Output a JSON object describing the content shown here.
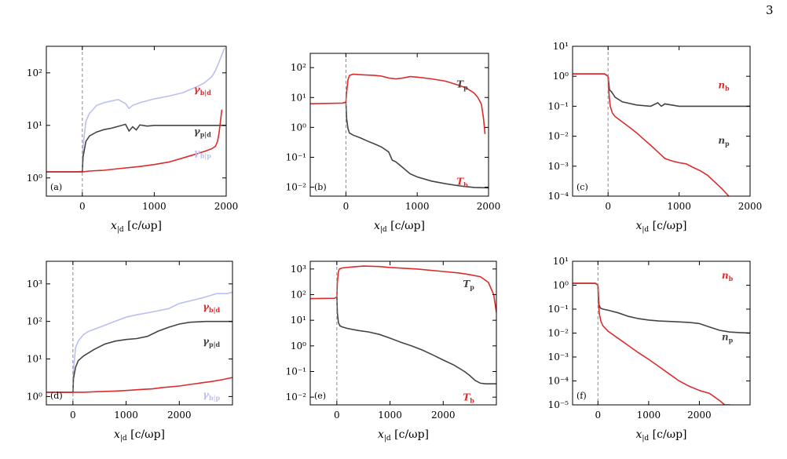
{
  "page_number": "3",
  "chart_data": [
    {
      "id": "a",
      "panel_label": "(a)",
      "type": "line",
      "yscale": "log",
      "xlim": [
        -500,
        2000
      ],
      "ylim": [
        0.45,
        320
      ],
      "xticks": [
        0,
        1000,
        2000
      ],
      "xtick_labels": [
        "0",
        "1000",
        "2000"
      ],
      "yticks": [
        1,
        10,
        100
      ],
      "ytick_labels": [
        "10⁰",
        "10¹",
        "10²"
      ],
      "xlabel": "x|d [c/ωp]",
      "xlabel_main": "x",
      "xlabel_sub": "|d",
      "xlabel_units": " [c/ωp]",
      "vline_x": 0,
      "series": [
        {
          "name": "γb|p",
          "label_main": "γ",
          "label_sub": "b|p",
          "color": "#bcbff0",
          "x": [
            -500,
            -100,
            0,
            10,
            50,
            100,
            200,
            300,
            400,
            500,
            600,
            650,
            700,
            800,
            1000,
            1200,
            1400,
            1600,
            1700,
            1800,
            1850,
            1900,
            1950,
            1980
          ],
          "y": [
            1.3,
            1.3,
            1.35,
            4,
            12,
            17,
            24,
            27,
            29,
            31,
            26,
            21,
            24,
            27,
            32,
            36,
            42,
            55,
            65,
            85,
            110,
            160,
            240,
            300
          ]
        },
        {
          "name": "γp|d",
          "label_main": "γ",
          "label_sub": "p|d",
          "color": "#444444",
          "x": [
            -500,
            0,
            10,
            50,
            100,
            200,
            300,
            400,
            500,
            600,
            650,
            700,
            750,
            800,
            900,
            1000,
            1200,
            1500,
            2000
          ],
          "y": [
            1.3,
            1.3,
            2.5,
            5,
            6.3,
            7.5,
            8.3,
            8.8,
            9.6,
            10.5,
            7.8,
            9.4,
            8.2,
            10.2,
            9.7,
            10,
            10,
            10,
            10
          ]
        },
        {
          "name": "γb|d",
          "label_main": "γ",
          "label_sub": "b|d",
          "color": "#dd2b2b",
          "x": [
            -500,
            0,
            100,
            300,
            500,
            800,
            1000,
            1200,
            1400,
            1600,
            1700,
            1800,
            1850,
            1880,
            1900,
            1920,
            1940
          ],
          "y": [
            1.3,
            1.3,
            1.35,
            1.4,
            1.5,
            1.65,
            1.8,
            2.0,
            2.4,
            2.9,
            3.2,
            3.6,
            4.0,
            5.0,
            7.0,
            12,
            20
          ]
        }
      ]
    },
    {
      "id": "b",
      "panel_label": "(b)",
      "type": "line",
      "yscale": "log",
      "xlim": [
        -500,
        2000
      ],
      "ylim": [
        0.005,
        300
      ],
      "xticks": [
        0,
        1000,
        2000
      ],
      "xtick_labels": [
        "0",
        "1000",
        "2000"
      ],
      "yticks": [
        0.01,
        0.1,
        1,
        10,
        100
      ],
      "ytick_labels": [
        "10⁻²",
        "10⁻¹",
        "10⁰",
        "10¹",
        "10²"
      ],
      "xlabel": "x|d [c/ωp]",
      "xlabel_main": "x",
      "xlabel_sub": "|d",
      "xlabel_units": " [c/ωp]",
      "vline_x": 0,
      "series": [
        {
          "name": "Tb",
          "label_main": "T",
          "label_sub": "b",
          "color": "#dd2b2b",
          "x": [
            -500,
            -50,
            0,
            10,
            30,
            50,
            100,
            200,
            400,
            500,
            600,
            700,
            800,
            900,
            1000,
            1200,
            1400,
            1600,
            1700,
            1800,
            1850,
            1900,
            1930,
            1950
          ],
          "y": [
            6.2,
            6.5,
            7,
            15,
            40,
            55,
            60,
            58,
            55,
            52,
            45,
            42,
            45,
            50,
            48,
            42,
            35,
            25,
            20,
            14,
            10,
            6,
            2,
            0.6
          ]
        },
        {
          "name": "Tp",
          "label_main": "T",
          "label_sub": "p",
          "color": "#444444",
          "x": [
            0,
            10,
            30,
            50,
            100,
            200,
            300,
            400,
            500,
            600,
            650,
            700,
            800,
            900,
            1000,
            1200,
            1400,
            1600,
            1800,
            2000
          ],
          "y": [
            7,
            2,
            0.9,
            0.65,
            0.55,
            0.45,
            0.35,
            0.28,
            0.22,
            0.15,
            0.08,
            0.07,
            0.045,
            0.028,
            0.022,
            0.016,
            0.013,
            0.011,
            0.0098,
            0.0095
          ]
        }
      ]
    },
    {
      "id": "c",
      "panel_label": "(c)",
      "type": "line",
      "yscale": "log",
      "xlim": [
        -500,
        2000
      ],
      "ylim": [
        0.0001,
        10
      ],
      "xticks": [
        0,
        1000,
        2000
      ],
      "xtick_labels": [
        "0",
        "1000",
        "2000"
      ],
      "yticks": [
        0.0001,
        0.001,
        0.01,
        0.1,
        1,
        10
      ],
      "ytick_labels": [
        "10⁻⁴",
        "10⁻³",
        "10⁻²",
        "10⁻¹",
        "10⁰",
        "10¹"
      ],
      "xlabel": "x|d [c/ωp]",
      "xlabel_main": "x",
      "xlabel_sub": "|d",
      "xlabel_units": " [c/ωp]",
      "vline_x": 0,
      "series": [
        {
          "name": "np",
          "label_main": "n",
          "label_sub": "p",
          "color": "#444444",
          "x": [
            -500,
            -50,
            0,
            20,
            50,
            100,
            200,
            400,
            600,
            700,
            750,
            800,
            1000,
            1200,
            1500,
            2000
          ],
          "y": [
            1.2,
            1.2,
            1.0,
            0.35,
            0.3,
            0.2,
            0.14,
            0.11,
            0.1,
            0.13,
            0.1,
            0.12,
            0.1,
            0.1,
            0.1,
            0.1
          ]
        },
        {
          "name": "nb",
          "label_main": "n",
          "label_sub": "b",
          "color": "#dd2b2b",
          "x": [
            -500,
            -50,
            0,
            10,
            30,
            60,
            100,
            200,
            300,
            400,
            500,
            600,
            700,
            800,
            900,
            1000,
            1100,
            1200,
            1300,
            1400,
            1500,
            1600,
            1700
          ],
          "y": [
            1.2,
            1.2,
            1.0,
            0.3,
            0.1,
            0.06,
            0.045,
            0.03,
            0.02,
            0.013,
            0.008,
            0.005,
            0.003,
            0.0018,
            0.0015,
            0.0013,
            0.0012,
            0.0009,
            0.0007,
            0.0005,
            0.0003,
            0.00018,
            0.0001
          ]
        }
      ]
    },
    {
      "id": "d",
      "panel_label": "(d)",
      "type": "line",
      "yscale": "log",
      "xlim": [
        -500,
        3000
      ],
      "ylim": [
        0.6,
        4000
      ],
      "xticks": [
        0,
        1000,
        2000
      ],
      "xtick_labels": [
        "0",
        "1000",
        "2000"
      ],
      "yticks": [
        1,
        10,
        100,
        1000
      ],
      "ytick_labels": [
        "10⁰",
        "10¹",
        "10²",
        "10³"
      ],
      "xlabel": "x|d [c/ωp]",
      "xlabel_main": "x",
      "xlabel_sub": "|d",
      "xlabel_units": " [c/ωp]",
      "vline_x": 0,
      "series": [
        {
          "name": "γb|p",
          "label_main": "γ",
          "label_sub": "b|p",
          "color": "#bcbff0",
          "x": [
            -500,
            0,
            10,
            50,
            100,
            200,
            300,
            500,
            700,
            1000,
            1200,
            1500,
            1800,
            2000,
            2300,
            2500,
            2700,
            2900,
            3000
          ],
          "y": [
            1.3,
            1.3,
            5,
            20,
            30,
            45,
            55,
            70,
            90,
            130,
            150,
            180,
            220,
            300,
            380,
            450,
            550,
            550,
            600
          ]
        },
        {
          "name": "γp|d",
          "label_main": "γ",
          "label_sub": "p|d",
          "color": "#444444",
          "x": [
            -500,
            0,
            10,
            50,
            100,
            200,
            400,
            600,
            800,
            1000,
            1200,
            1400,
            1600,
            1800,
            2000,
            2200,
            2500,
            2800,
            3000
          ],
          "y": [
            1.3,
            1.3,
            3,
            6,
            9,
            12,
            18,
            25,
            30,
            33,
            35,
            40,
            55,
            70,
            85,
            95,
            100,
            100,
            100
          ]
        },
        {
          "name": "γb|d",
          "label_main": "γ",
          "label_sub": "b|d",
          "color": "#dd2b2b",
          "x": [
            -500,
            0,
            200,
            500,
            800,
            1000,
            1300,
            1500,
            1700,
            2000,
            2200,
            2400,
            2600,
            2800,
            2900,
            3000
          ],
          "y": [
            1.3,
            1.3,
            1.3,
            1.35,
            1.4,
            1.45,
            1.55,
            1.6,
            1.75,
            1.9,
            2.1,
            2.3,
            2.5,
            2.8,
            3.0,
            3.2
          ]
        }
      ]
    },
    {
      "id": "e",
      "panel_label": "(e)",
      "type": "line",
      "yscale": "log",
      "xlim": [
        -500,
        3000
      ],
      "ylim": [
        0.005,
        2000
      ],
      "xticks": [
        0,
        1000,
        2000
      ],
      "xtick_labels": [
        "0",
        "1000",
        "2000"
      ],
      "yticks": [
        0.01,
        0.1,
        1,
        10,
        100,
        1000
      ],
      "ytick_labels": [
        "10⁻²",
        "10⁻¹",
        "10⁰",
        "10¹",
        "10²",
        "10³"
      ],
      "xlabel": "x|d [c/ωp]",
      "xlabel_main": "x",
      "xlabel_sub": "|d",
      "xlabel_units": " [c/ωp]",
      "vline_x": 0,
      "series": [
        {
          "name": "Tb",
          "label_main": "T",
          "label_sub": "b",
          "color": "#dd2b2b",
          "x": [
            -500,
            -50,
            0,
            10,
            30,
            50,
            100,
            300,
            500,
            800,
            1000,
            1500,
            2000,
            2300,
            2500,
            2700,
            2850,
            2950,
            3000
          ],
          "y": [
            70,
            72,
            80,
            300,
            800,
            1000,
            1100,
            1200,
            1300,
            1250,
            1150,
            1000,
            800,
            700,
            600,
            500,
            300,
            100,
            20
          ]
        },
        {
          "name": "Tp",
          "label_main": "T",
          "label_sub": "p",
          "color": "#444444",
          "x": [
            0,
            10,
            30,
            60,
            100,
            200,
            400,
            600,
            800,
            1000,
            1200,
            1400,
            1600,
            1800,
            2000,
            2200,
            2400,
            2500,
            2600,
            2700,
            2800,
            3000
          ],
          "y": [
            80,
            20,
            8,
            6,
            5.5,
            4.8,
            4,
            3.5,
            2.8,
            2,
            1.4,
            1,
            0.7,
            0.45,
            0.28,
            0.18,
            0.1,
            0.07,
            0.045,
            0.035,
            0.033,
            0.033
          ]
        }
      ]
    },
    {
      "id": "f",
      "panel_label": "(f)",
      "type": "line",
      "yscale": "log",
      "xlim": [
        -500,
        3000
      ],
      "ylim": [
        1e-05,
        10
      ],
      "xticks": [
        0,
        1000,
        2000
      ],
      "xtick_labels": [
        "0",
        "1000",
        "2000"
      ],
      "yticks": [
        1e-05,
        0.0001,
        0.001,
        0.01,
        0.1,
        1,
        10
      ],
      "ytick_labels": [
        "10⁻⁵",
        "10⁻⁴",
        "10⁻³",
        "10⁻²",
        "10⁻¹",
        "10⁰",
        "10¹"
      ],
      "xlabel": "x|d [c/ωp]",
      "xlabel_main": "x",
      "xlabel_sub": "|d",
      "xlabel_units": " [c/ωp]",
      "vline_x": 0,
      "series": [
        {
          "name": "np",
          "label_main": "n",
          "label_sub": "p",
          "color": "#444444",
          "x": [
            -500,
            -50,
            0,
            20,
            50,
            100,
            200,
            400,
            600,
            800,
            1000,
            1200,
            1500,
            1800,
            2000,
            2200,
            2400,
            2600,
            2800,
            3000
          ],
          "y": [
            1.2,
            1.2,
            1.0,
            0.15,
            0.11,
            0.1,
            0.09,
            0.07,
            0.05,
            0.04,
            0.035,
            0.032,
            0.03,
            0.028,
            0.025,
            0.018,
            0.013,
            0.011,
            0.0105,
            0.01
          ]
        },
        {
          "name": "nb",
          "label_main": "n",
          "label_sub": "b",
          "color": "#dd2b2b",
          "x": [
            -500,
            -50,
            0,
            10,
            30,
            60,
            100,
            200,
            400,
            600,
            800,
            1000,
            1200,
            1400,
            1600,
            1800,
            2000,
            2200,
            2400,
            2500,
            2600
          ],
          "y": [
            1.2,
            1.2,
            1.0,
            0.2,
            0.06,
            0.03,
            0.02,
            0.012,
            0.006,
            0.003,
            0.0015,
            0.0008,
            0.0004,
            0.0002,
            0.0001,
            6e-05,
            4e-05,
            3e-05,
            1.5e-05,
            1e-05,
            1e-05
          ]
        }
      ]
    }
  ]
}
